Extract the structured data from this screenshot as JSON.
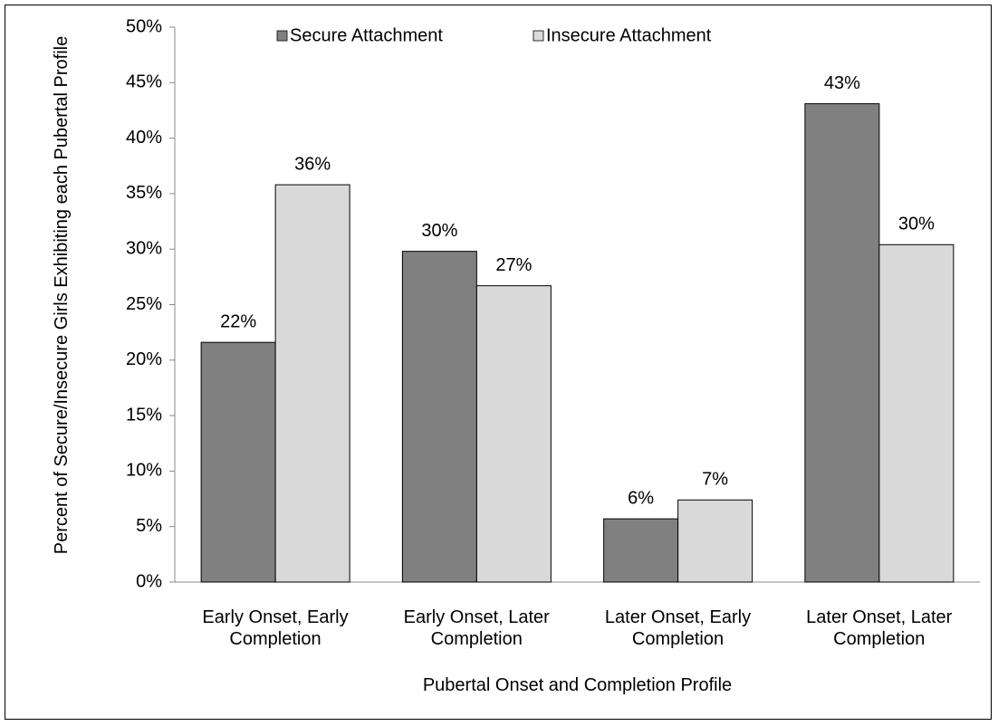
{
  "chart_data": {
    "type": "bar",
    "x_label": "Pubertal Onset and Completion Profile",
    "y_label": "Percent of Secure/Insecure Girls Exhibiting each Pubertal Profile",
    "categories": [
      "Early Onset, Early Completion",
      "Early Onset, Later Completion",
      "Later Onset, Early Completion",
      "Later Onset, Later Completion"
    ],
    "series": [
      {
        "name": "Secure Attachment",
        "color": "#808080",
        "values": [
          21.6,
          29.8,
          5.7,
          43.1
        ],
        "value_labels": [
          "22%",
          "30%",
          "6%",
          "43%"
        ]
      },
      {
        "name": "Insecure Attachment",
        "color": "#d9d9d9",
        "values": [
          35.8,
          26.7,
          7.4,
          30.4
        ],
        "value_labels": [
          "36%",
          "27%",
          "7%",
          "30%"
        ]
      }
    ],
    "ylim": [
      0,
      50
    ],
    "yticks": [
      {
        "value": 0,
        "label": "0%"
      },
      {
        "value": 5,
        "label": "5%"
      },
      {
        "value": 10,
        "label": "10%"
      },
      {
        "value": 15,
        "label": "15%"
      },
      {
        "value": 20,
        "label": "20%"
      },
      {
        "value": 25,
        "label": "25%"
      },
      {
        "value": 30,
        "label": "30%"
      },
      {
        "value": 35,
        "label": "35%"
      },
      {
        "value": 40,
        "label": "40%"
      },
      {
        "value": 45,
        "label": "45%"
      },
      {
        "value": 50,
        "label": "50%"
      }
    ],
    "grid": false,
    "legend": "top"
  }
}
